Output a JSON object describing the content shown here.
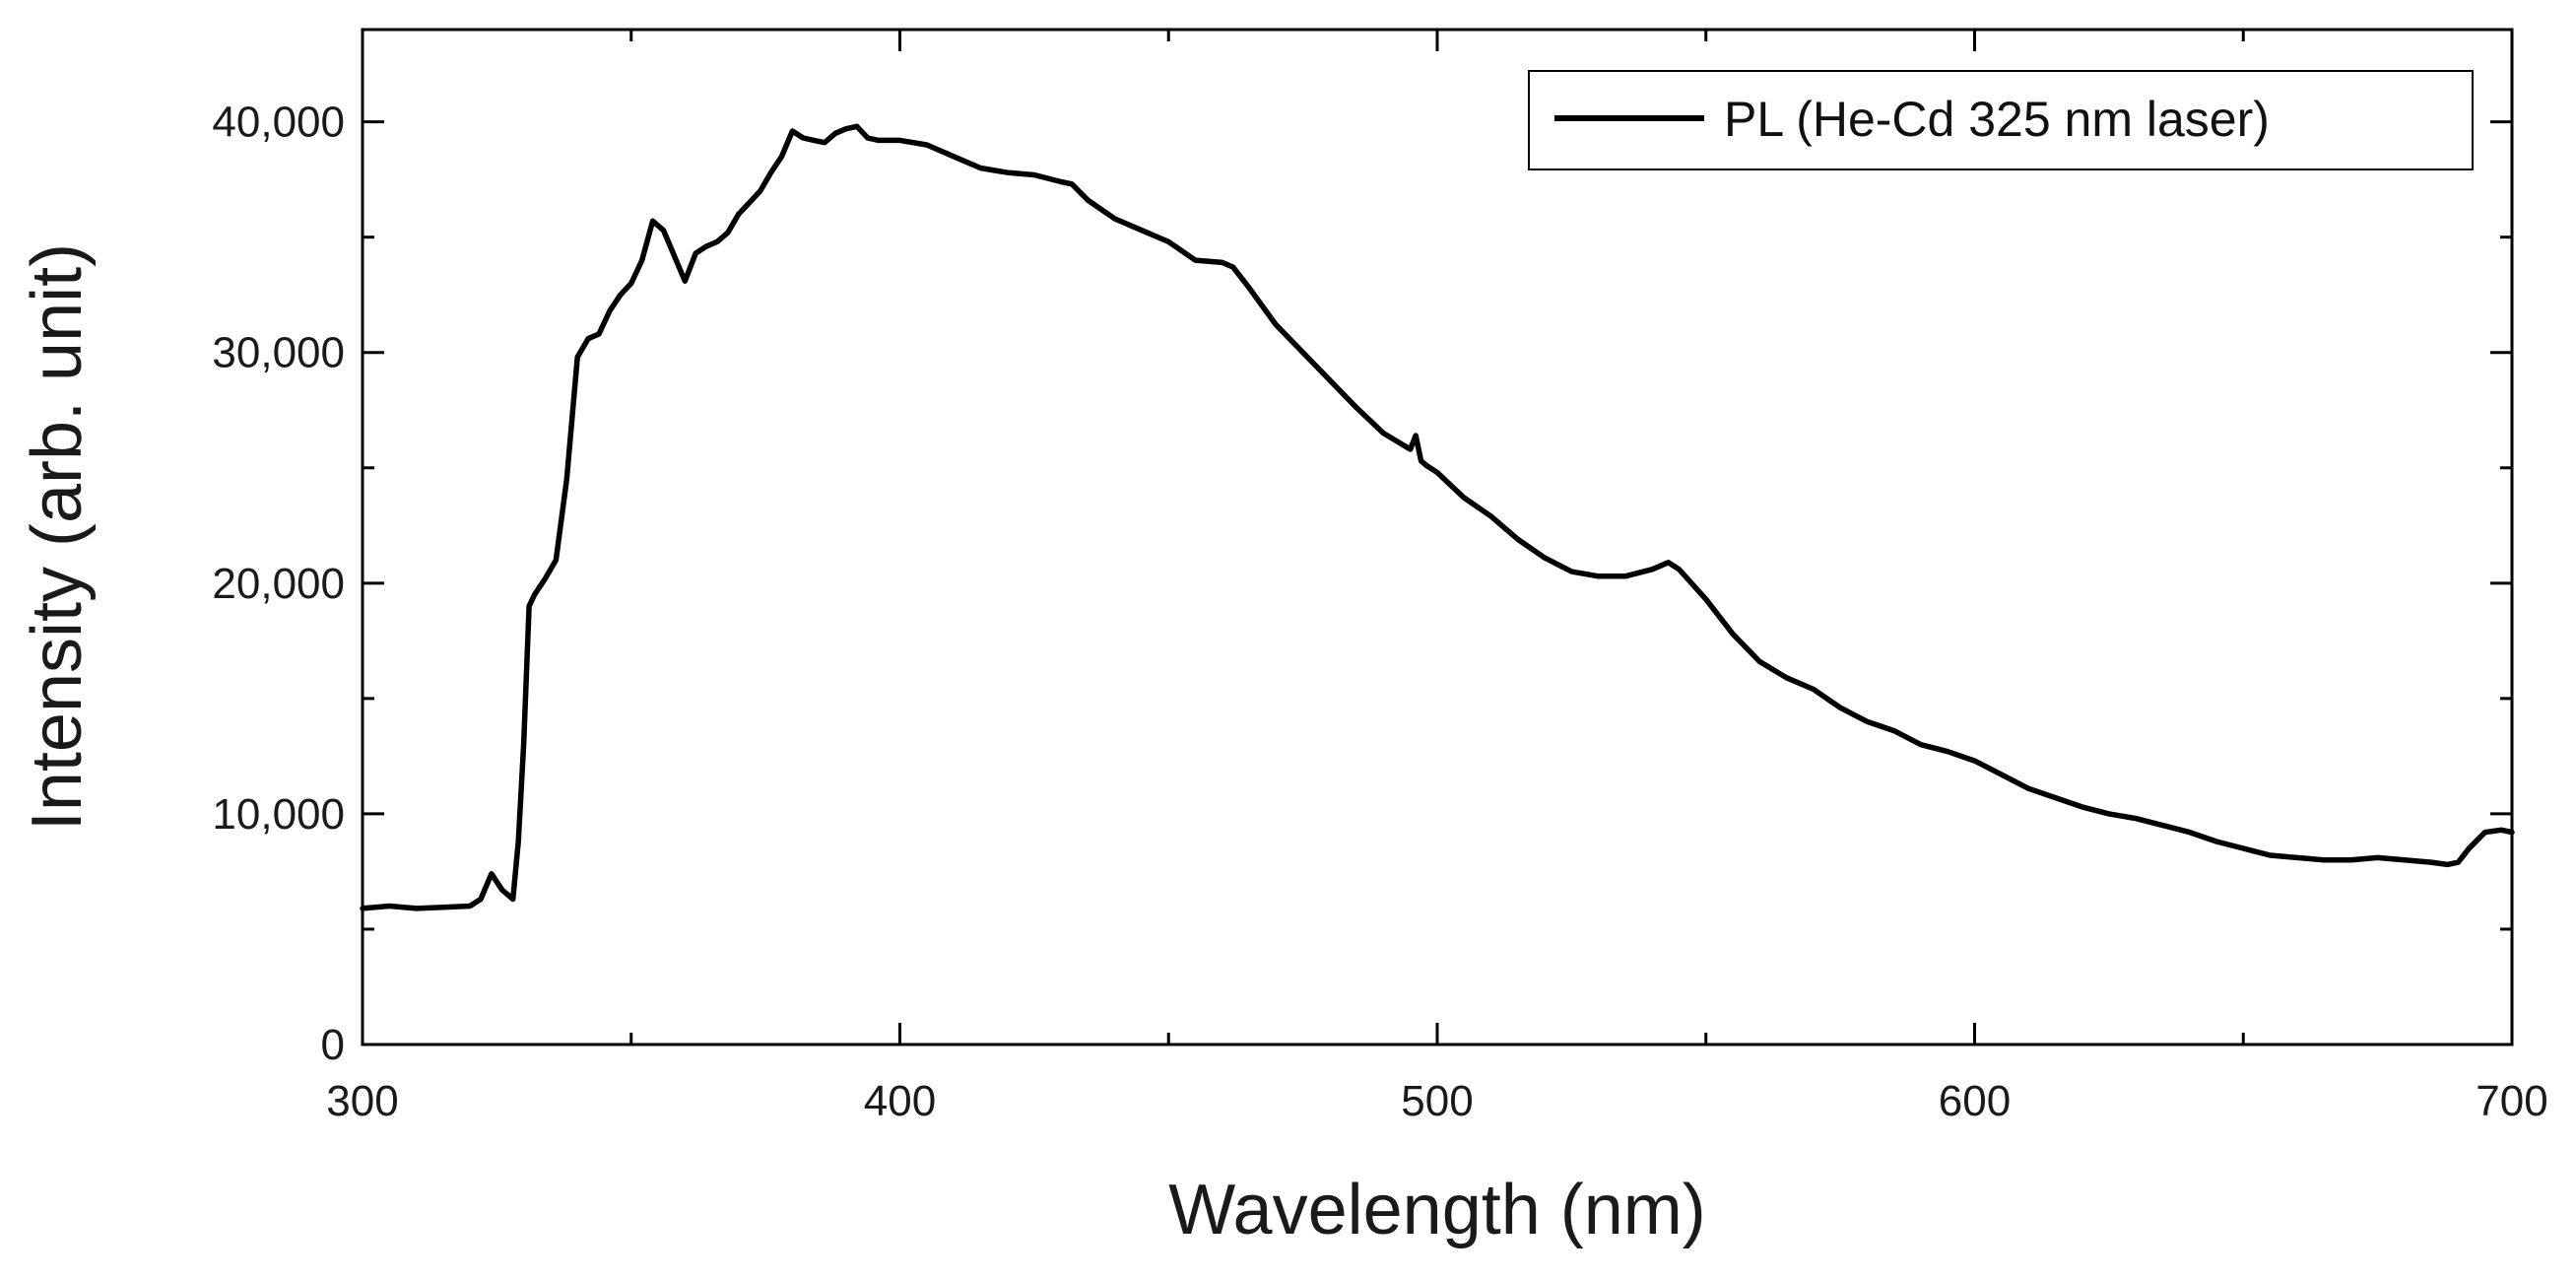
{
  "chart_data": {
    "type": "line",
    "title": "",
    "xlabel": "Wavelength (nm)",
    "ylabel": "Intensity (arb. unit)",
    "xlim": [
      300,
      700
    ],
    "ylim": [
      0,
      44000
    ],
    "x_ticks": [
      300,
      400,
      500,
      600,
      700
    ],
    "x_tick_labels": [
      "300",
      "400",
      "500",
      "600",
      "700"
    ],
    "y_ticks": [
      0,
      10000,
      20000,
      30000,
      40000
    ],
    "y_tick_labels": [
      "0",
      "10,000",
      "20,000",
      "30,000",
      "40,000"
    ],
    "grid": false,
    "legend": {
      "position": "top-right",
      "entries": [
        "PL (He-Cd 325 nm laser)"
      ]
    },
    "series": [
      {
        "name": "PL (He-Cd 325 nm laser)",
        "color": "#000000",
        "x": [
          300,
          305,
          310,
          315,
          320,
          322,
          324,
          326,
          328,
          329,
          330,
          331,
          332,
          334,
          336,
          338,
          340,
          342,
          344,
          346,
          348,
          350,
          352,
          354,
          356,
          358,
          360,
          362,
          364,
          366,
          368,
          370,
          372,
          374,
          376,
          378,
          380,
          382,
          384,
          386,
          388,
          390,
          392,
          394,
          396,
          398,
          400,
          405,
          410,
          415,
          420,
          425,
          430,
          432,
          435,
          440,
          445,
          450,
          455,
          460,
          462,
          465,
          470,
          475,
          480,
          485,
          490,
          495,
          496,
          497,
          498,
          500,
          505,
          510,
          515,
          520,
          525,
          530,
          535,
          540,
          543,
          545,
          550,
          555,
          560,
          565,
          570,
          575,
          580,
          585,
          590,
          595,
          600,
          605,
          610,
          615,
          620,
          625,
          630,
          635,
          640,
          645,
          650,
          655,
          660,
          665,
          670,
          675,
          680,
          685,
          688,
          690,
          692,
          695,
          698,
          700
        ],
        "values": [
          5900,
          6000,
          5900,
          5950,
          6000,
          6300,
          7400,
          6700,
          6300,
          8800,
          13000,
          19000,
          19500,
          20200,
          21000,
          24500,
          29800,
          30600,
          30800,
          31800,
          32500,
          33000,
          34000,
          35700,
          35300,
          34200,
          33100,
          34300,
          34600,
          34800,
          35200,
          36000,
          36500,
          37000,
          37800,
          38500,
          39600,
          39300,
          39200,
          39100,
          39500,
          39700,
          39800,
          39300,
          39200,
          39200,
          39200,
          39000,
          38500,
          38000,
          37800,
          37700,
          37400,
          37300,
          36600,
          35800,
          35300,
          34800,
          34000,
          33900,
          33700,
          32800,
          31200,
          30000,
          28800,
          27600,
          26500,
          25800,
          26400,
          25300,
          25100,
          24800,
          23700,
          22900,
          21900,
          21100,
          20500,
          20300,
          20300,
          20600,
          20900,
          20600,
          19300,
          17800,
          16600,
          15900,
          15400,
          14600,
          14000,
          13600,
          13000,
          12700,
          12300,
          11700,
          11100,
          10700,
          10300,
          10000,
          9800,
          9500,
          9200,
          8800,
          8500,
          8200,
          8100,
          8000,
          8000,
          8100,
          8000,
          7900,
          7800,
          7900,
          8500,
          9200,
          9300,
          9200
        ]
      }
    ]
  }
}
